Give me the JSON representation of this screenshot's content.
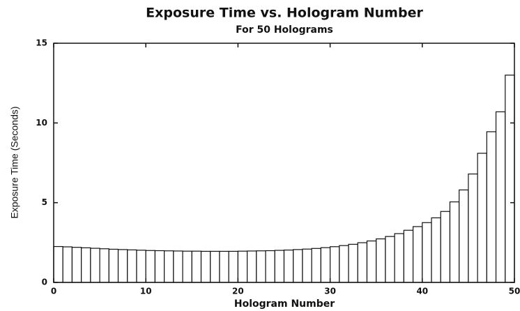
{
  "chart_data": {
    "type": "bar",
    "title": "Exposure Time vs. Hologram Number",
    "subtitle": "For 50 Holograms",
    "xlabel": "Hologram Number",
    "ylabel": "Exposure Time (Seconds)",
    "x": [
      1,
      2,
      3,
      4,
      5,
      6,
      7,
      8,
      9,
      10,
      11,
      12,
      13,
      14,
      15,
      16,
      17,
      18,
      19,
      20,
      21,
      22,
      23,
      24,
      25,
      26,
      27,
      28,
      29,
      30,
      31,
      32,
      33,
      34,
      35,
      36,
      37,
      38,
      39,
      40,
      41,
      42,
      43,
      44,
      45,
      46,
      47,
      48,
      49,
      50
    ],
    "values": [
      2.25,
      2.23,
      2.2,
      2.17,
      2.14,
      2.11,
      2.08,
      2.06,
      2.04,
      2.02,
      2.0,
      1.99,
      1.98,
      1.97,
      1.96,
      1.96,
      1.95,
      1.95,
      1.95,
      1.95,
      1.96,
      1.97,
      1.98,
      1.99,
      2.01,
      2.03,
      2.06,
      2.09,
      2.13,
      2.18,
      2.24,
      2.31,
      2.39,
      2.49,
      2.6,
      2.73,
      2.88,
      3.06,
      3.27,
      3.5,
      3.75,
      4.05,
      4.45,
      5.05,
      5.8,
      6.8,
      8.1,
      9.45,
      10.7,
      13.0
    ],
    "color": "#ffffff",
    "xlim": [
      0,
      50
    ],
    "xticks": [
      0,
      10,
      20,
      30,
      40,
      50
    ],
    "ylim": [
      0,
      15
    ],
    "yticks": [
      0,
      5,
      10,
      15
    ]
  }
}
